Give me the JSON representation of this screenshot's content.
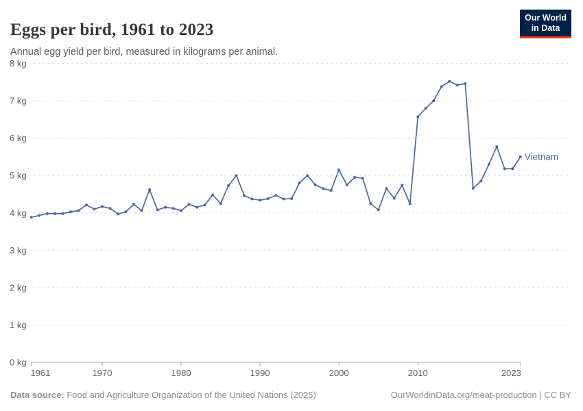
{
  "header": {
    "title": "Eggs per bird, 1961 to 2023",
    "subtitle": "Annual egg yield per bird, measured in kilograms per animal.",
    "logo": {
      "line1": "Our World",
      "line2": "in Data",
      "bg": "#002147",
      "accent": "#e63e13"
    }
  },
  "footer": {
    "source_label": "Data source:",
    "source_text": " Food and Agriculture Organization of the United Nations (2025)",
    "attribution": "OurWorldinData.org/meat-production | CC BY"
  },
  "colors": {
    "line": "#4a69a4",
    "grid": "#dedede",
    "axis": "#a5a5a5",
    "tick_text": "#5e5e5e"
  },
  "chart_data": {
    "type": "line",
    "title": "Eggs per bird, 1961 to 2023",
    "subtitle": "Annual egg yield per bird, measured in kilograms per animal.",
    "xlabel": "",
    "ylabel": "",
    "unit_suffix": " kg",
    "ylim": [
      0,
      8
    ],
    "xlim": [
      1961,
      2023
    ],
    "y_ticks": [
      0,
      1,
      2,
      3,
      4,
      5,
      6,
      7,
      8
    ],
    "x_ticks": [
      1961,
      1970,
      1980,
      1990,
      2000,
      2010,
      2023
    ],
    "grid": true,
    "legend_position": "end-of-line",
    "series": [
      {
        "name": "Vietnam",
        "color": "#4a69a4",
        "x": [
          1961,
          1962,
          1963,
          1964,
          1965,
          1966,
          1967,
          1968,
          1969,
          1970,
          1971,
          1972,
          1973,
          1974,
          1975,
          1976,
          1977,
          1978,
          1979,
          1980,
          1981,
          1982,
          1983,
          1984,
          1985,
          1986,
          1987,
          1988,
          1989,
          1990,
          1991,
          1992,
          1993,
          1994,
          1995,
          1996,
          1997,
          1998,
          1999,
          2000,
          2001,
          2002,
          2003,
          2004,
          2005,
          2006,
          2007,
          2008,
          2009,
          2010,
          2011,
          2012,
          2013,
          2014,
          2015,
          2016,
          2017,
          2018,
          2019,
          2020,
          2021,
          2022,
          2023
        ],
        "values": [
          3.88,
          3.93,
          3.98,
          3.98,
          3.98,
          4.03,
          4.06,
          4.21,
          4.1,
          4.17,
          4.12,
          3.97,
          4.03,
          4.23,
          4.06,
          4.62,
          4.08,
          4.15,
          4.12,
          4.06,
          4.23,
          4.15,
          4.21,
          4.48,
          4.25,
          4.73,
          5.0,
          4.46,
          4.37,
          4.34,
          4.38,
          4.47,
          4.37,
          4.38,
          4.8,
          5.0,
          4.75,
          4.65,
          4.6,
          5.15,
          4.75,
          4.95,
          4.93,
          4.25,
          4.08,
          4.65,
          4.39,
          4.74,
          4.24,
          6.57,
          6.8,
          7.0,
          7.38,
          7.52,
          7.42,
          7.46,
          4.66,
          4.85,
          5.3,
          5.77,
          5.18,
          5.18,
          5.5
        ]
      }
    ]
  }
}
